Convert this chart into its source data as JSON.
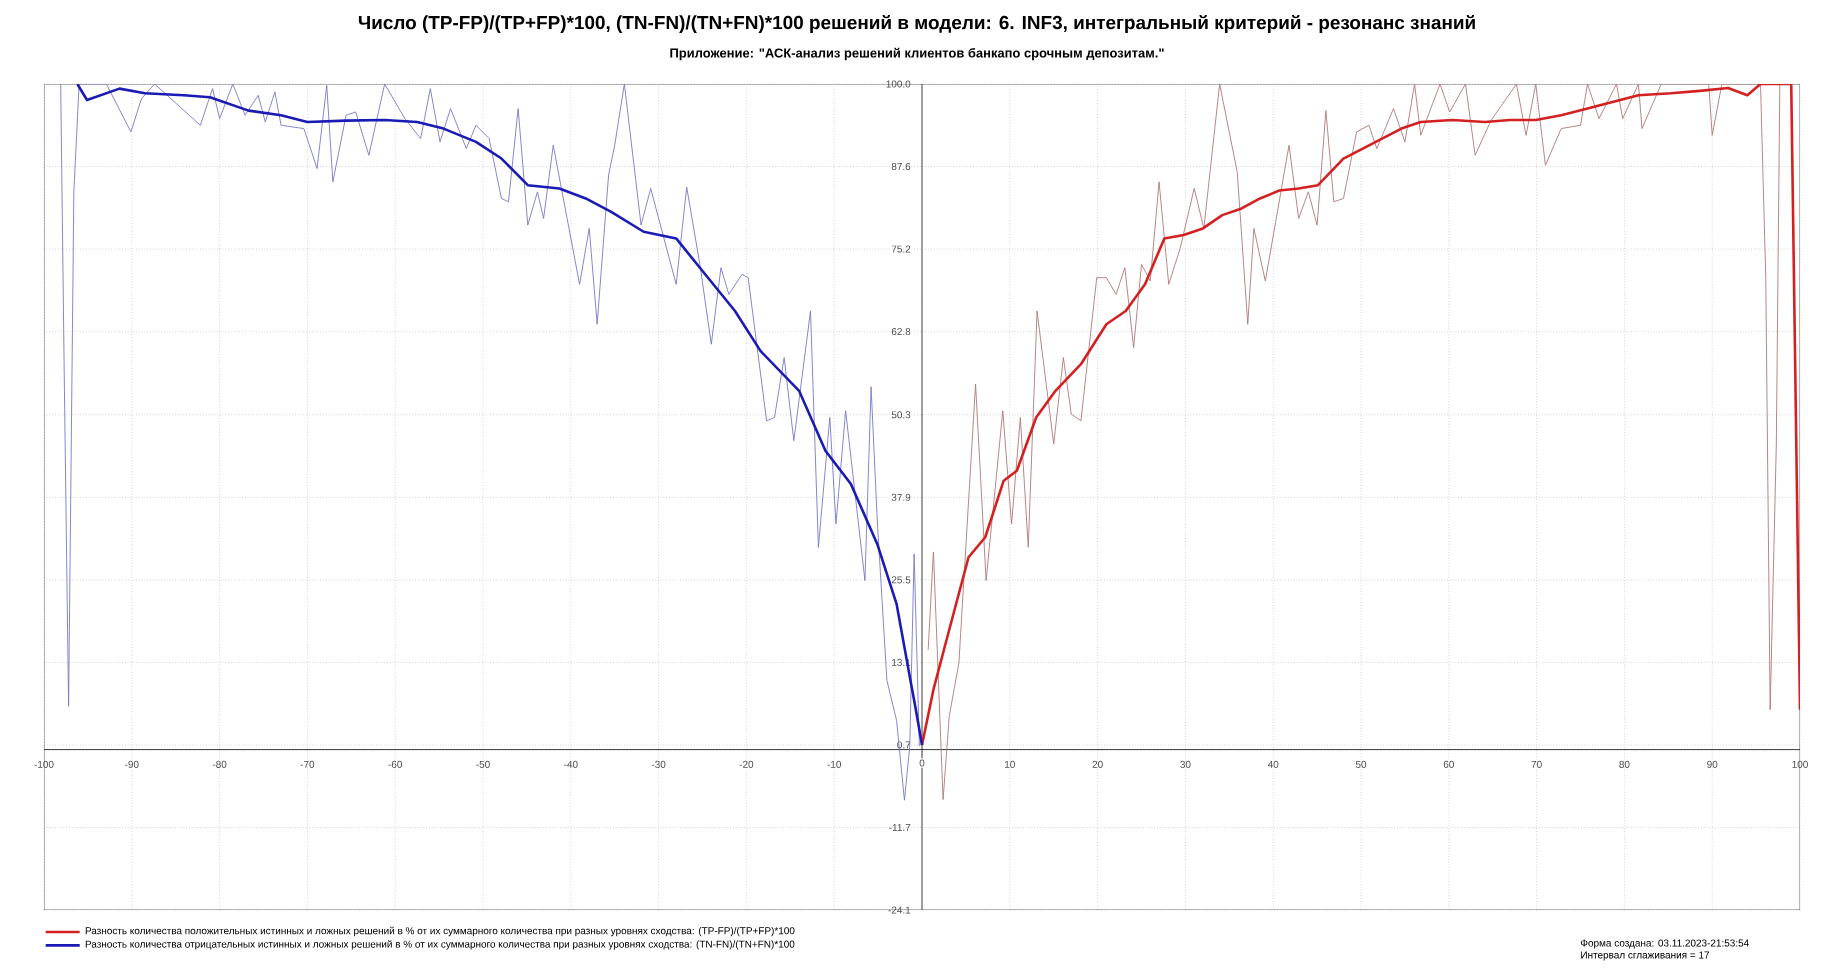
{
  "chart_data": {
    "type": "line",
    "title": "Число (TP-FP)/(TP+FP)*100, (TN-FN)/(TN+FN)*100 решений в модели: 6. INF3, интегральный критерий - резонанс знаний",
    "subtitle": "Приложение: \"АСК-анализ решений клиентов банкапо срочным депозитам.\"",
    "annotations": [
      "Форма создана: 03.11.2023-21:53:54",
      "Интервал сглаживания = 17"
    ],
    "xlim": [
      -100,
      100
    ],
    "ylim": [
      -24.1,
      100
    ],
    "xticks": [
      -100,
      -90,
      -80,
      -70,
      -60,
      -50,
      -40,
      -30,
      -20,
      -10,
      0,
      10,
      20,
      30,
      40,
      50,
      60,
      70,
      80,
      90,
      100
    ],
    "yticks": [
      -24.1,
      -11.7,
      0.7,
      13.1,
      25.5,
      37.9,
      50.3,
      62.8,
      75.2,
      87.6,
      {
        "value": 100,
        "label": "100.0"
      }
    ],
    "grid": true,
    "legend": "bottom left",
    "series": [
      {
        "color": "#7878c8",
        "x": [
          -98.1,
          -97.7,
          -97.2,
          -96.6,
          -96.0,
          -92.9,
          -90.1,
          -88.9,
          -87.4,
          -82.2,
          -80.8,
          -80.0,
          -78.5,
          -77.1,
          -75.6,
          -74.8,
          -73.7,
          -73.0,
          -70.4,
          -68.9,
          -67.8,
          -67.1,
          -65.6,
          -64.5,
          -63.0,
          -61.2,
          -58.9,
          -57.1,
          -56.0,
          -54.9,
          -53.7,
          -51.9,
          -50.8,
          -49.3,
          -47.9,
          -47.1,
          -46.0,
          -44.9,
          -43.8,
          -43.1,
          -42.0,
          -39.0,
          -37.9,
          -37.0,
          -35.7,
          -35.0,
          -33.9,
          -32.0,
          -30.9,
          -28.0,
          -26.8,
          -25.3,
          -24.0,
          -22.9,
          -22.0,
          -20.5,
          -19.8,
          -17.7,
          -16.8,
          -15.7,
          -14.6,
          -12.7,
          -11.8,
          -10.5,
          -9.8,
          -8.7,
          -6.5,
          -5.8,
          -5.1,
          -4.0,
          -2.9,
          -2.0,
          -1.4,
          -0.9,
          -0.3
        ],
        "values": [
          100,
          56.9,
          6.5,
          83.8,
          100,
          100,
          92.8,
          97.8,
          100,
          93.8,
          99.3,
          94.8,
          100,
          95.3,
          98.3,
          94.3,
          98.8,
          93.8,
          93.3,
          87.3,
          99.8,
          85.3,
          95.3,
          95.8,
          89.3,
          100,
          94.8,
          91.8,
          99.3,
          91.3,
          96.3,
          90.3,
          93.8,
          91.8,
          82.8,
          82.3,
          96.3,
          78.8,
          83.8,
          79.8,
          90.8,
          69.9,
          78.3,
          63.9,
          86.3,
          90.8,
          100,
          78.8,
          84.3,
          69.9,
          84.5,
          72.9,
          60.9,
          72.4,
          68.4,
          71.4,
          70.9,
          49.4,
          49.9,
          58.9,
          46.4,
          65.9,
          30.4,
          49.9,
          33.9,
          50.9,
          25.4,
          54.5,
          34.5,
          10.4,
          4.4,
          -7.6,
          0.4,
          29.4,
          0.5
        ]
      },
      {
        "color": "#b07878",
        "x": [
          0.7,
          1.3,
          2.4,
          3.1,
          4.2,
          6.1,
          7.3,
          9.2,
          10.2,
          11.2,
          12.1,
          13.1,
          15.0,
          16.1,
          17.0,
          18.1,
          19.9,
          21.0,
          22.1,
          23.1,
          24.1,
          25.0,
          26.0,
          27.0,
          28.1,
          29.4,
          31.0,
          32.1,
          33.9,
          35.9,
          37.1,
          37.8,
          39.1,
          41.8,
          42.9,
          44.0,
          45.0,
          46.0,
          46.9,
          48.0,
          49.5,
          50.9,
          51.8,
          53.7,
          55.0,
          56.1,
          56.8,
          59.0,
          60.1,
          61.9,
          63.0,
          64.8,
          67.7,
          68.8,
          69.9,
          71.0,
          72.8,
          75.0,
          75.8,
          77.1,
          79.1,
          79.8,
          81.6,
          82.0,
          84.2,
          89.6,
          90.0,
          91.1,
          95.5,
          96.1,
          96.6,
          97.3,
          97.7
        ],
        "values": [
          15.0,
          29.7,
          -7.5,
          5.0,
          13.0,
          54.9,
          25.4,
          50.9,
          33.9,
          49.9,
          30.4,
          65.9,
          45.9,
          58.9,
          50.4,
          49.4,
          70.9,
          70.9,
          68.4,
          72.4,
          60.4,
          72.9,
          70.4,
          85.3,
          69.9,
          75.3,
          84.3,
          78.3,
          100,
          86.8,
          63.9,
          78.3,
          70.4,
          90.8,
          79.8,
          83.8,
          78.8,
          96.0,
          82.3,
          82.8,
          92.8,
          93.8,
          90.3,
          96.3,
          91.3,
          100,
          92.3,
          100,
          95.8,
          100,
          89.3,
          94.5,
          100,
          92.3,
          100,
          87.8,
          93.3,
          93.8,
          100,
          94.8,
          100,
          94.8,
          100,
          93.3,
          100,
          100,
          92.3,
          100,
          100,
          70.9,
          6.0,
          45.9,
          100
        ]
      },
      {
        "name": "Разность количества положительных истинных и ложных решений в % от их суммарного количества при разных уровнях сходства: (TP-FP)/(TP+FP)*100",
        "color": "#d42020",
        "x": [
          0,
          1.3,
          3.1,
          5.3,
          7.2,
          9.3,
          10.8,
          13.0,
          15.2,
          18.1,
          21.0,
          23.2,
          25.4,
          27.6,
          29.8,
          32.0,
          34.2,
          36.4,
          38.5,
          40.7,
          42.9,
          45.1,
          48.0,
          50.2,
          52.4,
          54.6,
          56.8,
          60.4,
          64.1,
          67.0,
          69.9,
          72.8,
          75.8,
          78.7,
          81.6,
          85.3,
          88.9,
          91.8,
          94.0,
          95.5,
          99.0,
          100
        ],
        "values": [
          0.7,
          9.0,
          18.0,
          28.9,
          31.9,
          40.4,
          41.9,
          49.9,
          53.9,
          57.9,
          63.9,
          65.9,
          69.9,
          76.8,
          77.3,
          78.3,
          80.3,
          81.3,
          82.8,
          84.0,
          84.3,
          84.8,
          88.8,
          90.3,
          91.8,
          93.3,
          94.3,
          94.6,
          94.3,
          94.6,
          94.6,
          95.3,
          96.3,
          97.3,
          98.3,
          98.6,
          99.0,
          99.4,
          98.3,
          100,
          100,
          6.0
        ]
      },
      {
        "name": "Разность количества отрицательных истинных и ложных решений в % от их суммарного количества при разных уровнях сходства: (TN-FN)/(TN+FN)*100",
        "color": "#1a1ab4",
        "x": [
          -96.2,
          -95.1,
          -91.4,
          -88.5,
          -84.1,
          -81.1,
          -76.7,
          -73.0,
          -70.0,
          -65.6,
          -61.2,
          -57.5,
          -54.5,
          -50.8,
          -47.9,
          -44.9,
          -41.3,
          -38.3,
          -35.4,
          -31.7,
          -28.0,
          -25.0,
          -21.3,
          -18.4,
          -14.0,
          -11.0,
          -8.1,
          -5.1,
          -2.9,
          -1.4,
          -0.7,
          0
        ],
        "values": [
          100,
          97.6,
          99.3,
          98.6,
          98.3,
          98.0,
          96.0,
          95.3,
          94.3,
          94.5,
          94.6,
          94.3,
          93.3,
          91.3,
          88.8,
          84.8,
          84.3,
          82.8,
          80.8,
          77.8,
          76.8,
          71.9,
          65.9,
          59.9,
          53.9,
          44.9,
          39.9,
          30.9,
          21.9,
          11.0,
          6.0,
          0.7
        ]
      }
    ]
  }
}
